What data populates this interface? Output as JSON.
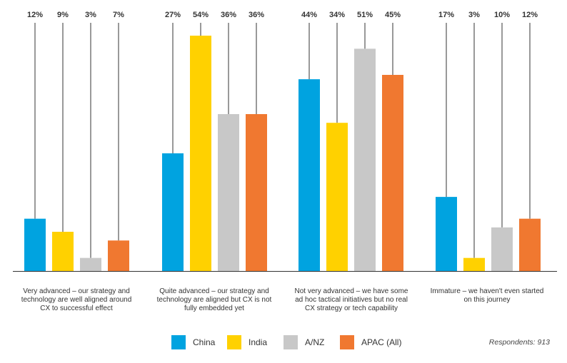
{
  "chart_data": {
    "type": "bar",
    "categories": [
      "Very advanced – our strategy and technology are well aligned around CX to successful effect",
      "Quite advanced – our strategy and technology are aligned but CX is not fully embedded yet",
      "Not very advanced – we have some ad hoc tactical initiatives but no real CX strategy or tech capability",
      "Immature – we haven't even started on this journey"
    ],
    "category_lines": [
      [
        "Very advanced – our strategy and",
        "technology are well aligned around",
        "CX to successful effect"
      ],
      [
        "Quite advanced – our strategy and",
        "technology are aligned but CX is not",
        "fully embedded yet"
      ],
      [
        "Not very advanced – we have some",
        "ad hoc tactical initiatives but no real",
        "CX strategy or tech capability"
      ],
      [
        "Immature – we haven't even started",
        "on this journey"
      ]
    ],
    "series": [
      {
        "name": "China",
        "color": "#00A3E0",
        "values": [
          12,
          27,
          44,
          17
        ],
        "labels": [
          "12%",
          "27%",
          "44%",
          "17%"
        ]
      },
      {
        "name": "India",
        "color": "#FFD100",
        "values": [
          9,
          54,
          34,
          3
        ],
        "labels": [
          "9%",
          "54%",
          "34%",
          "3%"
        ]
      },
      {
        "name": "A/NZ",
        "color": "#C8C8C8",
        "values": [
          3,
          36,
          51,
          10
        ],
        "labels": [
          "3%",
          "36%",
          "51%",
          "10%"
        ]
      },
      {
        "name": "APAC (All)",
        "color": "#F07830",
        "values": [
          7,
          36,
          45,
          12
        ],
        "labels": [
          "7%",
          "36%",
          "45%",
          "12%"
        ]
      }
    ],
    "ylim": [
      0,
      54
    ],
    "grid": false,
    "legend_position": "bottom-center",
    "title": "",
    "xlabel": "",
    "ylabel": ""
  },
  "footer": {
    "respondents": "Respondents: 913"
  }
}
